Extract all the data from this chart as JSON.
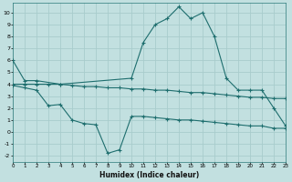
{
  "xlabel": "Humidex (Indice chaleur)",
  "bg_color": "#c2e0e0",
  "grid_color": "#a8cccc",
  "line_color": "#1e6e6e",
  "series1_x": [
    0,
    1,
    2,
    4,
    10,
    11,
    12,
    13,
    14,
    15,
    16,
    17,
    18,
    19,
    20,
    21,
    22,
    23
  ],
  "series1_y": [
    6,
    4.3,
    4.3,
    4.0,
    4.5,
    7.5,
    9.0,
    9.5,
    10.5,
    9.5,
    10.0,
    8.0,
    4.5,
    3.5,
    3.5,
    3.5,
    2.0,
    0.5
  ],
  "series2_x": [
    0,
    1,
    2,
    3,
    4,
    5,
    6,
    7,
    8,
    9,
    10,
    11,
    12,
    13,
    14,
    15,
    16,
    17,
    18,
    19,
    20,
    21,
    22,
    23
  ],
  "series2_y": [
    4.0,
    4.0,
    4.0,
    4.0,
    4.0,
    3.9,
    3.8,
    3.8,
    3.7,
    3.7,
    3.6,
    3.6,
    3.5,
    3.5,
    3.4,
    3.3,
    3.3,
    3.2,
    3.1,
    3.0,
    2.9,
    2.9,
    2.8,
    2.8
  ],
  "series3_x": [
    0,
    1,
    2,
    3,
    4,
    5,
    6,
    7,
    8,
    9,
    10,
    11,
    12,
    13,
    14,
    15,
    16,
    17,
    18,
    19,
    20,
    21,
    22,
    23
  ],
  "series3_y": [
    3.9,
    3.7,
    3.5,
    2.2,
    2.3,
    1.0,
    0.7,
    0.6,
    -1.8,
    -1.5,
    1.3,
    1.3,
    1.2,
    1.1,
    1.0,
    1.0,
    0.9,
    0.8,
    0.7,
    0.6,
    0.5,
    0.5,
    0.3,
    0.3
  ],
  "xlim": [
    0,
    23
  ],
  "ylim": [
    -2.5,
    10.8
  ],
  "yticks": [
    -2,
    -1,
    0,
    1,
    2,
    3,
    4,
    5,
    6,
    7,
    8,
    9,
    10
  ],
  "xticks": [
    0,
    1,
    2,
    3,
    4,
    5,
    6,
    7,
    8,
    9,
    10,
    11,
    12,
    13,
    14,
    15,
    16,
    17,
    18,
    19,
    20,
    21,
    22,
    23
  ]
}
